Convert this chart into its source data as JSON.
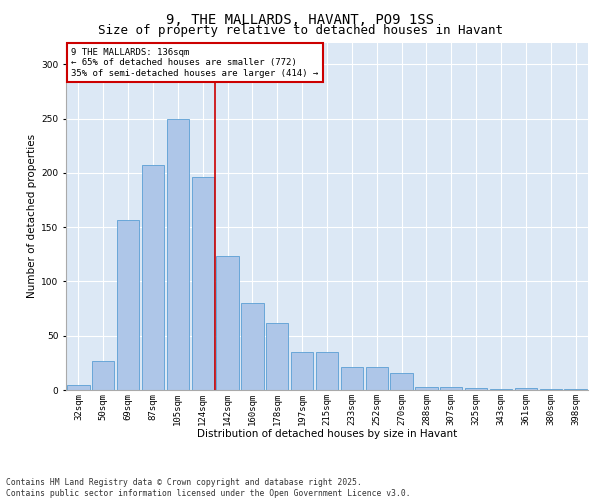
{
  "title": "9, THE MALLARDS, HAVANT, PO9 1SS",
  "subtitle": "Size of property relative to detached houses in Havant",
  "xlabel": "Distribution of detached houses by size in Havant",
  "ylabel": "Number of detached properties",
  "categories": [
    "32sqm",
    "50sqm",
    "69sqm",
    "87sqm",
    "105sqm",
    "124sqm",
    "142sqm",
    "160sqm",
    "178sqm",
    "197sqm",
    "215sqm",
    "233sqm",
    "252sqm",
    "270sqm",
    "288sqm",
    "307sqm",
    "325sqm",
    "343sqm",
    "361sqm",
    "380sqm",
    "398sqm"
  ],
  "values": [
    5,
    27,
    157,
    207,
    250,
    196,
    123,
    80,
    62,
    35,
    35,
    21,
    21,
    16,
    3,
    3,
    2,
    1,
    2,
    1,
    1
  ],
  "bar_color": "#aec6e8",
  "bar_edge_color": "#5a9fd4",
  "vline_x": 5.5,
  "vline_color": "#cc0000",
  "annotation_text": "9 THE MALLARDS: 136sqm\n← 65% of detached houses are smaller (772)\n35% of semi-detached houses are larger (414) →",
  "annotation_box_color": "#ffffff",
  "annotation_box_edge": "#cc0000",
  "ylim": [
    0,
    320
  ],
  "yticks": [
    0,
    50,
    100,
    150,
    200,
    250,
    300
  ],
  "background_color": "#dce8f5",
  "fig_background": "#ffffff",
  "footer": "Contains HM Land Registry data © Crown copyright and database right 2025.\nContains public sector information licensed under the Open Government Licence v3.0.",
  "title_fontsize": 10,
  "subtitle_fontsize": 9,
  "axis_label_fontsize": 7.5,
  "tick_fontsize": 6.5,
  "footer_fontsize": 5.8,
  "annotation_fontsize": 6.5
}
